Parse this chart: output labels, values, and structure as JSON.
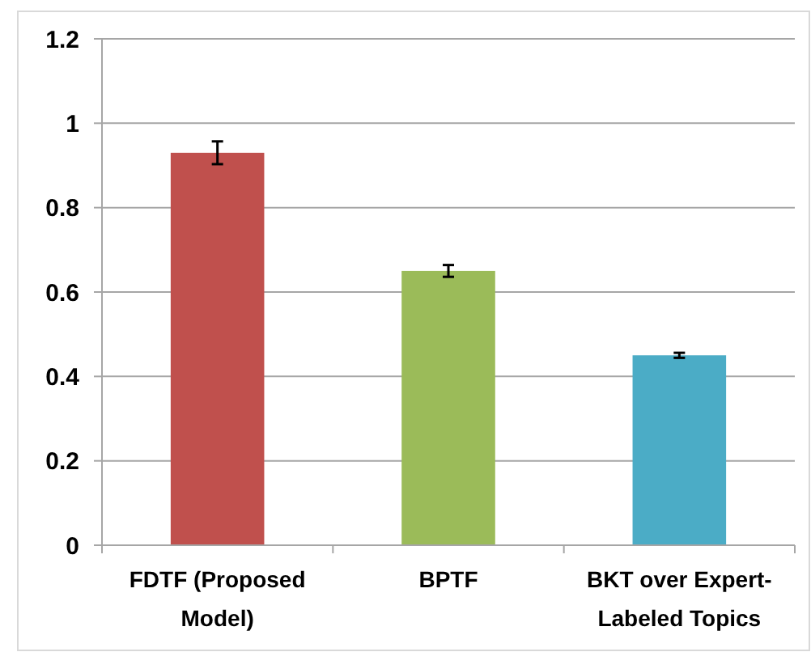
{
  "chart_data": {
    "type": "bar",
    "categories": [
      "FDTF (Proposed Model)",
      "BPTF",
      "BKT over Expert-Labeled Topics"
    ],
    "values": [
      0.93,
      0.65,
      0.45
    ],
    "colors": [
      "#c0504d",
      "#9bbb59",
      "#4bacc6"
    ],
    "errors": [
      0.027,
      0.014,
      0.006
    ],
    "ylim": [
      0,
      1.2
    ],
    "yticks": [
      0,
      {
        "value": 0.2,
        "label": "0.2"
      },
      {
        "value": 0.4,
        "label": "0.4"
      },
      {
        "value": 0.6,
        "label": "0.6"
      },
      {
        "value": 0.8,
        "label": "0.8"
      },
      1,
      {
        "value": 1.2,
        "label": "1.2"
      }
    ],
    "grid": "y"
  }
}
